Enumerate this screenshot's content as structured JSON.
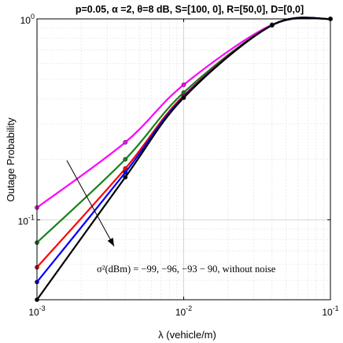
{
  "chart_data": {
    "type": "line",
    "title": "p=0.05, α =2, θ=8 dB, S=[100, 0], R=[50,0], D=[0,0]",
    "xlabel": "λ (vehicle/m)",
    "ylabel": "Outage Probability",
    "xscale": "log",
    "yscale": "log",
    "xlim": [
      0.001,
      0.1
    ],
    "ylim": [
      0.04,
      1
    ],
    "x_ticks": [
      {
        "value": 0.001,
        "base": "10",
        "exp": "-3"
      },
      {
        "value": 0.01,
        "base": "10",
        "exp": "-2"
      },
      {
        "value": 0.1,
        "base": "10",
        "exp": "-1"
      }
    ],
    "y_ticks": [
      {
        "value": 0.1,
        "base": "10",
        "exp": "-1"
      },
      {
        "value": 1,
        "base": "10",
        "exp": "0"
      }
    ],
    "grid": true,
    "annotation": "σ²(dBm) = −99, −96, −93 − 90, without noise",
    "series": [
      {
        "color": "#ff00ff",
        "x": [
          0.001,
          0.004,
          0.01,
          0.04,
          0.1
        ],
        "y": [
          0.115,
          0.243,
          0.47,
          0.935,
          1.0
        ]
      },
      {
        "color": "#1a801a",
        "x": [
          0.001,
          0.004,
          0.01,
          0.04,
          0.1
        ],
        "y": [
          0.077,
          0.2,
          0.43,
          0.93,
          1.0
        ]
      },
      {
        "color": "#ff0000",
        "x": [
          0.001,
          0.004,
          0.01,
          0.04,
          0.1
        ],
        "y": [
          0.058,
          0.18,
          0.415,
          0.93,
          1.0
        ]
      },
      {
        "color": "#0000ff",
        "x": [
          0.001,
          0.004,
          0.01,
          0.04,
          0.1
        ],
        "y": [
          0.049,
          0.172,
          0.41,
          0.93,
          1.0
        ]
      },
      {
        "color": "#000000",
        "x": [
          0.001,
          0.004,
          0.01,
          0.04,
          0.1
        ],
        "y": [
          0.04,
          0.163,
          0.405,
          0.93,
          1.0
        ]
      }
    ]
  }
}
